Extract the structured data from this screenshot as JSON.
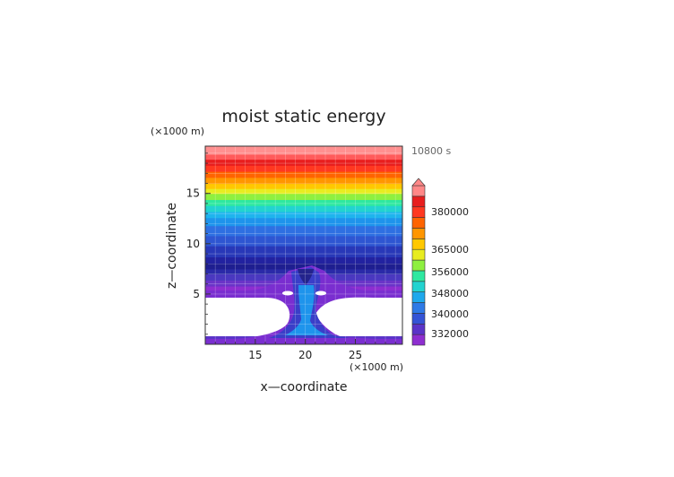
{
  "chart_data": {
    "type": "heatmap",
    "title": "moist static energy",
    "xlabel": "x—coordinate",
    "ylabel": "z—coordinate",
    "x_unit": "(×1000 m)",
    "y_unit": "(×1000 m)",
    "time_label": "10800 s",
    "xlim": [
      10,
      29.7
    ],
    "ylim": [
      0,
      19.7
    ],
    "x_ticks": [
      15,
      20,
      25
    ],
    "y_ticks": [
      5,
      10,
      15
    ],
    "grid": true,
    "colorbar": {
      "position": "right",
      "extend": "max",
      "tick_labels": [
        "380000",
        "365000",
        "356000",
        "348000",
        "340000",
        "332000"
      ],
      "levels": [
        {
          "color": "#8e2ed0"
        },
        {
          "color": "#5a34c8"
        },
        {
          "color": "#3454d6"
        },
        {
          "color": "#2e7ae6"
        },
        {
          "color": "#1ea8ec"
        },
        {
          "color": "#22d3d0"
        },
        {
          "color": "#2ee8a0"
        },
        {
          "color": "#8ef040"
        },
        {
          "color": "#e8ec20"
        },
        {
          "color": "#ffc800"
        },
        {
          "color": "#ff9600"
        },
        {
          "color": "#ff6400"
        },
        {
          "color": "#ff3820"
        },
        {
          "color": "#e81e1e"
        },
        {
          "color": "#ff8888"
        }
      ]
    },
    "bands": [
      {
        "z0": 0.0,
        "z1": 0.25,
        "color": "#2ee8a0"
      },
      {
        "z0": 0.25,
        "z1": 0.55,
        "color": "#1ea8ec"
      },
      {
        "z0": 0.55,
        "z1": 0.8,
        "color": "#5a34c8"
      },
      {
        "z0": 5.2,
        "z1": 5.8,
        "color": "#8e2ed0"
      },
      {
        "z0": 5.8,
        "z1": 6.4,
        "color": "#6a34c8"
      },
      {
        "z0": 6.4,
        "z1": 7.0,
        "color": "#4a38c0"
      },
      {
        "z0": 7.0,
        "z1": 7.5,
        "color": "#2a2aa8"
      },
      {
        "z0": 7.5,
        "z1": 8.1,
        "color": "#1e1e90"
      },
      {
        "z0": 8.1,
        "z1": 8.7,
        "color": "#2222a0"
      },
      {
        "z0": 8.7,
        "z1": 9.8,
        "color": "#2838b8"
      },
      {
        "z0": 9.8,
        "z1": 10.8,
        "color": "#2e56d2"
      },
      {
        "z0": 10.8,
        "z1": 11.8,
        "color": "#2e70e2"
      },
      {
        "z0": 11.8,
        "z1": 12.6,
        "color": "#1e94ec"
      },
      {
        "z0": 12.6,
        "z1": 13.2,
        "color": "#1eb4ee"
      },
      {
        "z0": 13.2,
        "z1": 13.8,
        "color": "#22d3d0"
      },
      {
        "z0": 13.8,
        "z1": 14.4,
        "color": "#2ee8a0"
      },
      {
        "z0": 14.4,
        "z1": 15.0,
        "color": "#8ef040"
      },
      {
        "z0": 15.0,
        "z1": 15.5,
        "color": "#e8ec20"
      },
      {
        "z0": 15.5,
        "z1": 16.0,
        "color": "#ffc800"
      },
      {
        "z0": 16.0,
        "z1": 16.6,
        "color": "#ff9600"
      },
      {
        "z0": 16.6,
        "z1": 17.2,
        "color": "#ff6400"
      },
      {
        "z0": 17.2,
        "z1": 17.8,
        "color": "#ff3820"
      },
      {
        "z0": 17.8,
        "z1": 18.4,
        "color": "#e81e1e"
      },
      {
        "z0": 18.4,
        "z1": 18.9,
        "color": "#ff5a5a"
      },
      {
        "z0": 18.9,
        "z1": 19.7,
        "color": "#ff9090"
      }
    ]
  }
}
